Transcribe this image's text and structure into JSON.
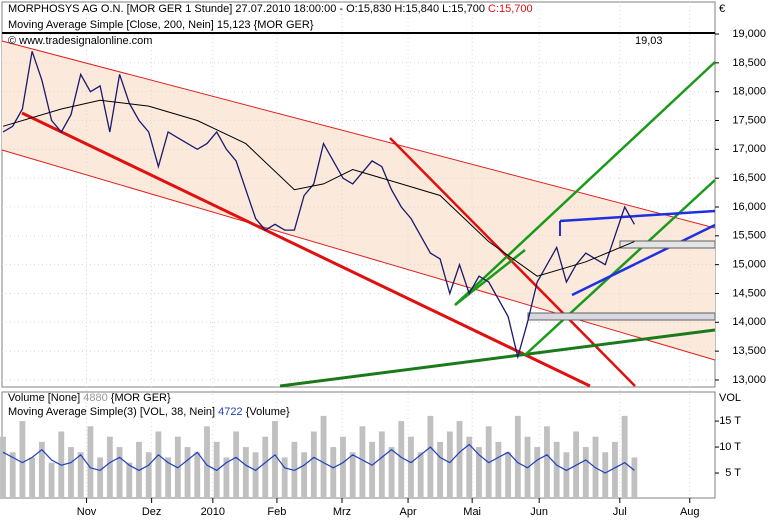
{
  "chart_data": [
    {
      "type": "line",
      "title": "MORPHOSYS AG O.N. [MOR GER  1 Stunde] 27.07.2010 18:00:00 - O:15,830 H:15,840 L:15,700",
      "close_label": "C:15,700",
      "ma_label": "Moving Average Simple [Close, 200, Nein] 15,123 {MOR GER}",
      "copyright": "© www.tradesignalonline.com",
      "level_label": "19,03",
      "currency": "€",
      "xlim": [
        0,
        73.3
      ],
      "xticks": [
        {
          "value": 8.6,
          "label": "Nov"
        },
        {
          "value": 15.3,
          "label": "Dez"
        },
        {
          "value": 21.6,
          "label": "2010"
        },
        {
          "value": 28.2,
          "label": "Feb"
        },
        {
          "value": 34.9,
          "label": "Mrz"
        },
        {
          "value": 41.7,
          "label": "Apr"
        },
        {
          "value": 48.3,
          "label": "Mai"
        },
        {
          "value": 55.2,
          "label": "Jun"
        },
        {
          "value": 63.5,
          "label": "Jul"
        },
        {
          "value": 70.7,
          "label": "Aug"
        }
      ],
      "ylim": [
        12878,
        19278
      ],
      "yticks": [
        {
          "value": 13000,
          "label": "13,000"
        },
        {
          "value": 13500,
          "label": "13,500"
        },
        {
          "value": 14000,
          "label": "14,000"
        },
        {
          "value": 14500,
          "label": "14,500"
        },
        {
          "value": 15000,
          "label": "15,000"
        },
        {
          "value": 15500,
          "label": "15,500"
        },
        {
          "value": 16000,
          "label": "16,000"
        },
        {
          "value": 16500,
          "label": "16,500"
        },
        {
          "value": 17000,
          "label": "17,000"
        },
        {
          "value": 17500,
          "label": "17,500"
        },
        {
          "value": 18000,
          "label": "18,000"
        },
        {
          "value": 18500,
          "label": "18,500"
        },
        {
          "value": 19000,
          "label": "19,000"
        }
      ],
      "series": [
        {
          "color": "#1a1a6e",
          "x": [
            0,
            1,
            2,
            3,
            4,
            5,
            6,
            7,
            8,
            9,
            10,
            11,
            12,
            13,
            14,
            15,
            16,
            17,
            18,
            19,
            20,
            21,
            22,
            23,
            24,
            25,
            26,
            27,
            28,
            29,
            30,
            31,
            32,
            33,
            34,
            35,
            36,
            37,
            38,
            39,
            40,
            41,
            42,
            43,
            44,
            45,
            46,
            47,
            48,
            49,
            50,
            51,
            52,
            53,
            54,
            55,
            56,
            57,
            58,
            59,
            60,
            61,
            62,
            63,
            64,
            65
          ],
          "values": [
            17300,
            17400,
            17700,
            18700,
            18200,
            17500,
            17300,
            17600,
            18300,
            18000,
            18100,
            17300,
            18300,
            17800,
            17500,
            17300,
            16700,
            17300,
            17200,
            17100,
            17000,
            17100,
            17300,
            17000,
            16800,
            16300,
            15800,
            15600,
            15700,
            15600,
            15600,
            16200,
            16400,
            17100,
            16800,
            16500,
            16400,
            16600,
            16800,
            16700,
            16300,
            16000,
            15800,
            15500,
            15200,
            15100,
            14500,
            15000,
            14500,
            14800,
            14700,
            14400,
            14100,
            13400,
            14000,
            14700,
            15000,
            15300,
            14700,
            15000,
            15200,
            15100,
            15000,
            15500,
            16000,
            15700
          ]
        },
        {
          "color": "#000000",
          "x": [
            0,
            6,
            10,
            15,
            20,
            25,
            30,
            33,
            36,
            41,
            45,
            50,
            55,
            60,
            65
          ],
          "values": [
            17400,
            17700,
            17850,
            17750,
            17500,
            17100,
            16300,
            16400,
            16650,
            16400,
            16200,
            15400,
            14800,
            15050,
            15400
          ]
        }
      ]
    },
    {
      "type": "bar",
      "volume_label": "Volume [None]",
      "volume_value": "4880",
      "volume_suffix": "{MOR GER}",
      "vma_label": "Moving Average Simple(3) [VOL, 38, Nein]",
      "vma_value": "4722",
      "vma_suffix": "{Volume}",
      "axis_label": "VOL",
      "xlim": [
        0,
        73.3
      ],
      "ylim": [
        0,
        20600
      ],
      "yticks": [
        {
          "value": 5000,
          "label": "5 T"
        },
        {
          "value": 10000,
          "label": "10 T"
        },
        {
          "value": 15000,
          "label": "15 T"
        }
      ],
      "color": "#c0c0c0",
      "values": [
        12000,
        9000,
        15000,
        8000,
        11000,
        7000,
        13000,
        10000,
        9000,
        14000,
        8000,
        12000,
        10000,
        7000,
        11000,
        9000,
        13000,
        8000,
        12000,
        10000,
        9000,
        14000,
        11000,
        8000,
        13000,
        10000,
        9000,
        12000,
        15000,
        8000,
        11000,
        9000,
        13000,
        16000,
        10000,
        12000,
        9000,
        14000,
        11000,
        13000,
        10000,
        15000,
        12000,
        9000,
        16000,
        11000,
        13000,
        15000,
        12000,
        10000,
        14000,
        11000,
        9000,
        16000,
        12000,
        10000,
        14000,
        11000,
        9000,
        13000,
        10000,
        12000,
        9000,
        11000,
        16000,
        8000
      ],
      "ma_color": "#1f3fbf",
      "ma_values": [
        9000,
        8000,
        7000,
        8000,
        9500,
        7500,
        6500,
        7000,
        8500,
        6000,
        5500,
        7000,
        8000,
        6500,
        5500,
        6500,
        8500,
        7000,
        6000,
        7500,
        9000,
        6500,
        5500,
        7000,
        8000,
        6500,
        5500,
        7000,
        8500,
        6000,
        5500,
        6500,
        8000,
        7000,
        6000,
        7000,
        8500,
        7500,
        6500,
        8000,
        9500,
        8000,
        7000,
        8500,
        10000,
        8000,
        7000,
        9000,
        10500,
        8500,
        7000,
        8000,
        9000,
        7000,
        6000,
        7500,
        8500,
        6500,
        5500,
        6500,
        7500,
        6000,
        5000,
        6000,
        7000,
        5500
      ]
    }
  ]
}
